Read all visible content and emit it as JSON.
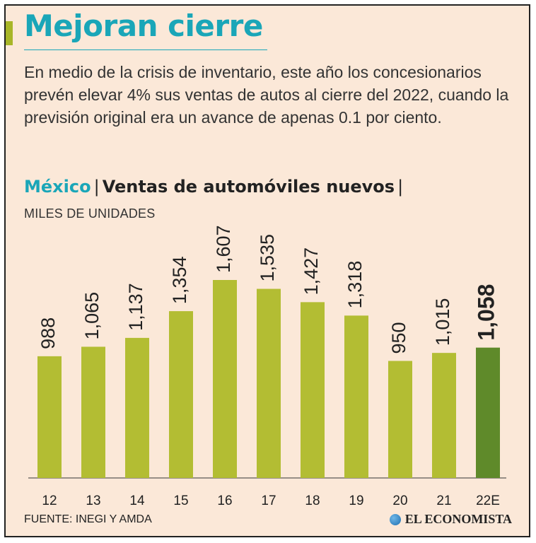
{
  "header": {
    "title": "Mejoran cierre",
    "intro": "En medio de la crisis de inventario, este año los concesionarios prevén elevar 4% sus ventas de autos al cierre del 2022, cuando la previsión original era un avance de apenas 0.1 por ciento."
  },
  "chart_header": {
    "country": "México",
    "title": "Ventas de automóviles nuevos",
    "separator": "|",
    "units": "MILES DE UNIDADES"
  },
  "footer": {
    "source": "FUENTE: INEGI Y AMDA",
    "brand": "EL ECONOMISTA"
  },
  "colors": {
    "accent": "#1aa6b8",
    "bar": "#b3bd33",
    "bar_highlight": "#5f8a2a",
    "background": "#fbe8d8"
  },
  "chart_data": {
    "type": "bar",
    "title": "Ventas de automóviles nuevos",
    "ylabel": "MILES DE UNIDADES",
    "categories": [
      "12",
      "13",
      "14",
      "15",
      "16",
      "17",
      "18",
      "19",
      "20",
      "21",
      "22E"
    ],
    "values": [
      988,
      1065,
      1137,
      1354,
      1607,
      1535,
      1427,
      1318,
      950,
      1015,
      1058
    ],
    "labels": [
      "988",
      "1,065",
      "1,137",
      "1,354",
      "1,607",
      "1,535",
      "1,427",
      "1,318",
      "950",
      "1,015",
      "1,058"
    ],
    "highlight_index": 10,
    "ylim": [
      0,
      1607
    ]
  }
}
